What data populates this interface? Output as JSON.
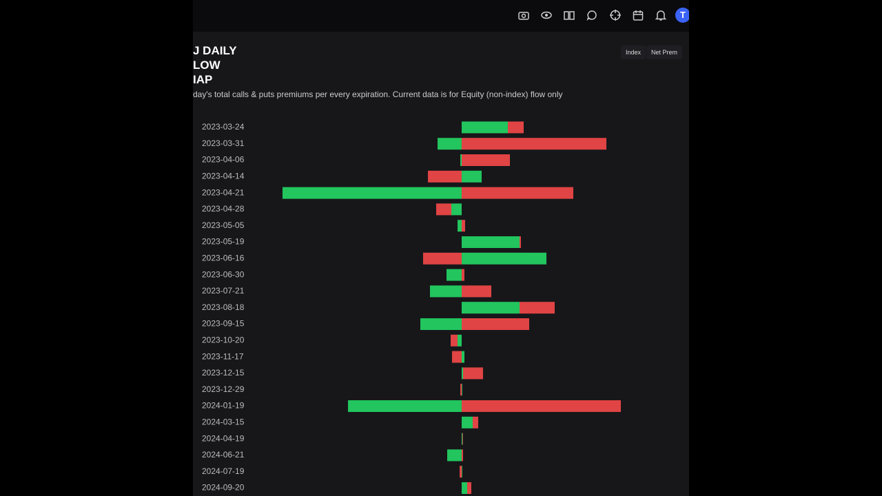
{
  "header": {
    "avatar": "T",
    "buttons": [
      "Index",
      "Net Prem"
    ]
  },
  "title_lines": [
    "J DAILY",
    "LOW",
    "IAP"
  ],
  "subtitle": "day's total calls & puts premiums per every expiration. Current data is for Equity (non-index) flow only",
  "chart_data": {
    "type": "diverging-stacked-bar",
    "categories": [
      "2023-03-24",
      "2023-03-31",
      "2023-04-06",
      "2023-04-14",
      "2023-04-21",
      "2023-04-28",
      "2023-05-05",
      "2023-05-19",
      "2023-06-16",
      "2023-06-30",
      "2023-07-21",
      "2023-08-18",
      "2023-09-15",
      "2023-10-20",
      "2023-11-17",
      "2023-12-15",
      "2023-12-29",
      "2024-01-19",
      "2024-03-15",
      "2024-04-19",
      "2024-06-21",
      "2024-07-19",
      "2024-09-20"
    ],
    "series": [
      {
        "color": "#22c55e",
        "values": [
          67,
          -35,
          -2,
          29,
          -260,
          -15,
          -6,
          84,
          123,
          -22,
          -46,
          84,
          -60,
          -6,
          4,
          2,
          0,
          -165,
          16,
          1,
          -21,
          0,
          8
        ]
      },
      {
        "color": "#e04444",
        "values": [
          23,
          210,
          70,
          -49,
          162,
          -22,
          5,
          2,
          -56,
          4,
          43,
          51,
          98,
          -10,
          -14,
          29,
          -2,
          231,
          8,
          0,
          2,
          -3,
          6
        ]
      }
    ],
    "xlim": [
      -260,
      231
    ]
  }
}
